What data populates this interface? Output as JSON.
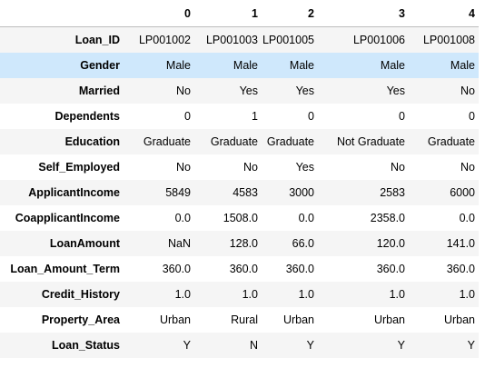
{
  "columns": [
    "0",
    "1",
    "2",
    "3",
    "4"
  ],
  "rows": [
    {
      "label": "Loan_ID",
      "cells": [
        "LP001002",
        "LP001003",
        "LP001005",
        "LP001006",
        "LP001008"
      ]
    },
    {
      "label": "Gender",
      "cells": [
        "Male",
        "Male",
        "Male",
        "Male",
        "Male"
      ]
    },
    {
      "label": "Married",
      "cells": [
        "No",
        "Yes",
        "Yes",
        "Yes",
        "No"
      ]
    },
    {
      "label": "Dependents",
      "cells": [
        "0",
        "1",
        "0",
        "0",
        "0"
      ]
    },
    {
      "label": "Education",
      "cells": [
        "Graduate",
        "Graduate",
        "Graduate",
        "Not Graduate",
        "Graduate"
      ]
    },
    {
      "label": "Self_Employed",
      "cells": [
        "No",
        "No",
        "Yes",
        "No",
        "No"
      ]
    },
    {
      "label": "ApplicantIncome",
      "cells": [
        "5849",
        "4583",
        "3000",
        "2583",
        "6000"
      ]
    },
    {
      "label": "CoapplicantIncome",
      "cells": [
        "0.0",
        "1508.0",
        "0.0",
        "2358.0",
        "0.0"
      ]
    },
    {
      "label": "LoanAmount",
      "cells": [
        "NaN",
        "128.0",
        "66.0",
        "120.0",
        "141.0"
      ]
    },
    {
      "label": "Loan_Amount_Term",
      "cells": [
        "360.0",
        "360.0",
        "360.0",
        "360.0",
        "360.0"
      ]
    },
    {
      "label": "Credit_History",
      "cells": [
        "1.0",
        "1.0",
        "1.0",
        "1.0",
        "1.0"
      ]
    },
    {
      "label": "Property_Area",
      "cells": [
        "Urban",
        "Rural",
        "Urban",
        "Urban",
        "Urban"
      ]
    },
    {
      "label": "Loan_Status",
      "cells": [
        "Y",
        "N",
        "Y",
        "Y",
        "Y"
      ]
    }
  ],
  "highlighted_row": "Gender",
  "colors": {
    "row_hover": "#cfe8fc",
    "row_stripe": "#f5f5f5",
    "header_border": "#bdbdbd"
  }
}
